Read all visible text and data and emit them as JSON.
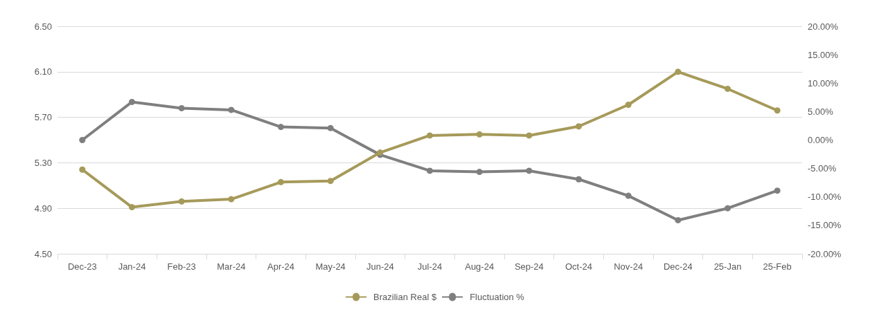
{
  "chart_data": {
    "type": "line",
    "categories": [
      "Dec-23",
      "Jan-24",
      "Feb-23",
      "Mar-24",
      "Apr-24",
      "May-24",
      "Jun-24",
      "Jul-24",
      "Aug-24",
      "Sep-24",
      "Oct-24",
      "Nov-24",
      "Dec-24",
      "25-Jan",
      "25-Feb"
    ],
    "series": [
      {
        "name": "Brazilian Real $",
        "color": "#a69a5a",
        "values": [
          5.24,
          4.91,
          4.96,
          4.98,
          5.13,
          5.14,
          5.39,
          5.54,
          5.55,
          5.54,
          5.62,
          5.81,
          6.1,
          5.95,
          5.76
        ]
      },
      {
        "name": "Fluctuation %",
        "color": "#7f7f7f",
        "axis": "y2",
        "values": [
          0,
          6.7,
          5.6,
          5.3,
          2.3,
          2.1,
          -2.6,
          -5.4,
          -5.6,
          -5.4,
          -6.9,
          -9.8,
          -14.1,
          -12,
          -8.9
        ]
      }
    ],
    "ylim": [
      4.5,
      6.5
    ],
    "yticks": [
      {
        "value": 4.5,
        "label": "4.50"
      },
      {
        "value": 4.9,
        "label": "4.90"
      },
      {
        "value": 5.3,
        "label": "5.30"
      },
      {
        "value": 5.7,
        "label": "5.70"
      },
      {
        "value": 6.1,
        "label": "6.10"
      },
      {
        "value": 6.5,
        "label": "6.50"
      }
    ],
    "y2lim": [
      -20,
      20
    ],
    "y2ticks": [
      {
        "value": -20,
        "label": "-20.00%"
      },
      {
        "value": -15,
        "label": "-15.00%"
      },
      {
        "value": -10,
        "label": "-10.00%"
      },
      {
        "value": -5,
        "label": "-5.00%"
      },
      {
        "value": 0,
        "label": "0.00%"
      },
      {
        "value": 5,
        "label": "5.00%"
      },
      {
        "value": 10,
        "label": "10.00%"
      },
      {
        "value": 15,
        "label": "15.00%"
      },
      {
        "value": 20,
        "label": "20.00%"
      }
    ],
    "grid": "y",
    "legend": "bottom",
    "marker": "circle",
    "line_style": "solid"
  }
}
